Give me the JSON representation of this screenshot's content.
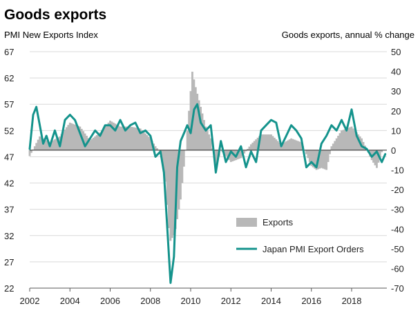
{
  "chart_data": {
    "title": "Goods exports",
    "type": "bar",
    "left_axis": {
      "label": "PMI New Exports Index",
      "min": 22,
      "max": 67,
      "ticks": [
        67,
        62,
        57,
        52,
        47,
        42,
        37,
        32,
        27,
        22
      ]
    },
    "right_axis": {
      "label": "Goods exports, annual  % change",
      "min": -70,
      "max": 50,
      "ticks": [
        50,
        40,
        30,
        20,
        10,
        0,
        -10,
        -20,
        -30,
        -40,
        -50,
        -60,
        -70
      ]
    },
    "x_axis": {
      "min": 2002.0,
      "max": 2019.75,
      "ticks": [
        "2002",
        "2004",
        "2006",
        "2008",
        "2010",
        "2012",
        "2014",
        "2016",
        "2018"
      ]
    },
    "grid": "horizontal",
    "legend_position": "bottom-right",
    "colors": {
      "exports": "#b8b8b8",
      "pmi": "#14938c"
    },
    "series": [
      {
        "name": "Exports",
        "kind": "bar",
        "axis": "right",
        "x": [
          2002.0,
          2002.5,
          2003.0,
          2003.5,
          2004.0,
          2004.5,
          2005.0,
          2005.5,
          2006.0,
          2006.5,
          2007.0,
          2007.5,
          2008.0,
          2008.25,
          2008.5,
          2008.75,
          2008.92,
          2009.0,
          2009.17,
          2009.25,
          2009.5,
          2009.75,
          2010.0,
          2010.08,
          2010.25,
          2010.5,
          2010.75,
          2011.0,
          2011.25,
          2011.5,
          2011.75,
          2012.0,
          2012.5,
          2013.0,
          2013.5,
          2014.0,
          2014.5,
          2015.0,
          2015.5,
          2016.0,
          2016.25,
          2016.5,
          2016.75,
          2017.0,
          2017.5,
          2018.0,
          2018.5,
          2019.0,
          2019.25,
          2019.5
        ],
        "y": [
          -3,
          7,
          4,
          7,
          14,
          12,
          5,
          9,
          15,
          12,
          12,
          11,
          6,
          2,
          -1,
          -16,
          -40,
          -46,
          -43,
          -40,
          -25,
          0,
          30,
          40,
          32,
          22,
          12,
          6,
          -9,
          0,
          -3,
          -6,
          -4,
          3,
          8,
          8,
          3,
          6,
          4,
          -8,
          -10,
          -9,
          -10,
          2,
          10,
          12,
          6,
          -5,
          -9,
          -1
        ]
      },
      {
        "name": "Japan PMI Export Orders",
        "kind": "line",
        "axis": "left",
        "x": [
          2002.0,
          2002.17,
          2002.33,
          2002.5,
          2002.67,
          2002.83,
          2003.0,
          2003.25,
          2003.5,
          2003.75,
          2004.0,
          2004.25,
          2004.5,
          2004.75,
          2005.0,
          2005.25,
          2005.5,
          2005.75,
          2006.0,
          2006.25,
          2006.5,
          2006.75,
          2007.0,
          2007.25,
          2007.5,
          2007.75,
          2008.0,
          2008.25,
          2008.5,
          2008.67,
          2008.83,
          2009.0,
          2009.17,
          2009.33,
          2009.5,
          2009.67,
          2009.83,
          2010.0,
          2010.17,
          2010.33,
          2010.5,
          2010.75,
          2011.0,
          2011.17,
          2011.25,
          2011.5,
          2011.75,
          2012.0,
          2012.25,
          2012.5,
          2012.75,
          2013.0,
          2013.25,
          2013.5,
          2013.75,
          2014.0,
          2014.25,
          2014.5,
          2014.75,
          2015.0,
          2015.25,
          2015.5,
          2015.75,
          2016.0,
          2016.25,
          2016.5,
          2016.75,
          2017.0,
          2017.25,
          2017.5,
          2017.75,
          2018.0,
          2018.25,
          2018.5,
          2018.75,
          2019.0,
          2019.25,
          2019.5,
          2019.67
        ],
        "y": [
          48.5,
          55.0,
          56.5,
          53.0,
          49.5,
          51.0,
          49.0,
          52.0,
          49.0,
          54.0,
          55.0,
          54.0,
          51.5,
          49.0,
          50.5,
          52.0,
          51.0,
          53.0,
          53.0,
          52.0,
          54.0,
          52.0,
          53.0,
          53.5,
          51.5,
          52.0,
          51.0,
          47.0,
          48.0,
          44.0,
          34.0,
          23.0,
          28.0,
          45.0,
          50.0,
          51.5,
          53.0,
          51.5,
          56.0,
          57.0,
          53.5,
          52.0,
          53.0,
          47.0,
          44.0,
          50.0,
          46.0,
          48.0,
          47.0,
          49.0,
          45.0,
          48.0,
          46.0,
          52.0,
          53.0,
          54.0,
          53.5,
          49.0,
          51.0,
          53.0,
          52.0,
          50.5,
          45.0,
          46.0,
          45.0,
          49.5,
          51.0,
          53.0,
          52.0,
          54.0,
          52.0,
          56.0,
          51.0,
          49.0,
          48.5,
          47.0,
          48.0,
          46.0,
          47.5
        ]
      }
    ]
  }
}
